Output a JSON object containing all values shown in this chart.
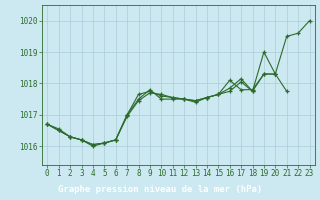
{
  "title": "Graphe pression niveau de la mer (hPa)",
  "background_color": "#cce8f0",
  "grid_color": "#aaccdd",
  "line_color": "#2d6b2d",
  "marker_color": "#2d6b2d",
  "footer_bg": "#2d6b2d",
  "footer_text_color": "#ffffff",
  "tick_color": "#2d6b2d",
  "xlabel_fontsize": 5.5,
  "ylabel_fontsize": 5.5,
  "title_fontsize": 6.5,
  "x_ticks": [
    0,
    1,
    2,
    3,
    4,
    5,
    6,
    7,
    8,
    9,
    10,
    11,
    12,
    13,
    14,
    15,
    16,
    17,
    18,
    19,
    20,
    21,
    22,
    23
  ],
  "y_ticks": [
    1016,
    1017,
    1018,
    1019,
    1020
  ],
  "ylim": [
    1015.4,
    1020.5
  ],
  "xlim": [
    -0.5,
    23.5
  ],
  "series": [
    [
      1016.7,
      1016.55,
      1016.3,
      1016.2,
      1016.0,
      1016.1,
      1016.2,
      1017.0,
      1017.65,
      1017.75,
      1017.6,
      1017.55,
      1017.5,
      1017.45,
      1017.55,
      1017.65,
      1017.75,
      1018.05,
      1017.75,
      1019.0,
      1018.3,
      1019.5,
      1019.6,
      1020.0
    ],
    [
      1016.7,
      1016.5,
      1016.3,
      1016.2,
      1016.05,
      1016.1,
      1016.2,
      1016.95,
      1017.45,
      1017.7,
      1017.65,
      1017.55,
      1017.5,
      1017.45,
      1017.55,
      1017.65,
      1017.85,
      1018.15,
      1017.75,
      1018.3,
      1018.3,
      1017.75,
      null,
      null
    ],
    [
      1016.7,
      1016.5,
      1016.3,
      1016.2,
      1016.05,
      1016.1,
      1016.2,
      1017.0,
      1017.5,
      1017.8,
      1017.5,
      1017.5,
      1017.5,
      1017.4,
      1017.55,
      1017.65,
      1018.1,
      1017.8,
      1017.8,
      1018.3,
      1018.3,
      null,
      null,
      null
    ]
  ]
}
